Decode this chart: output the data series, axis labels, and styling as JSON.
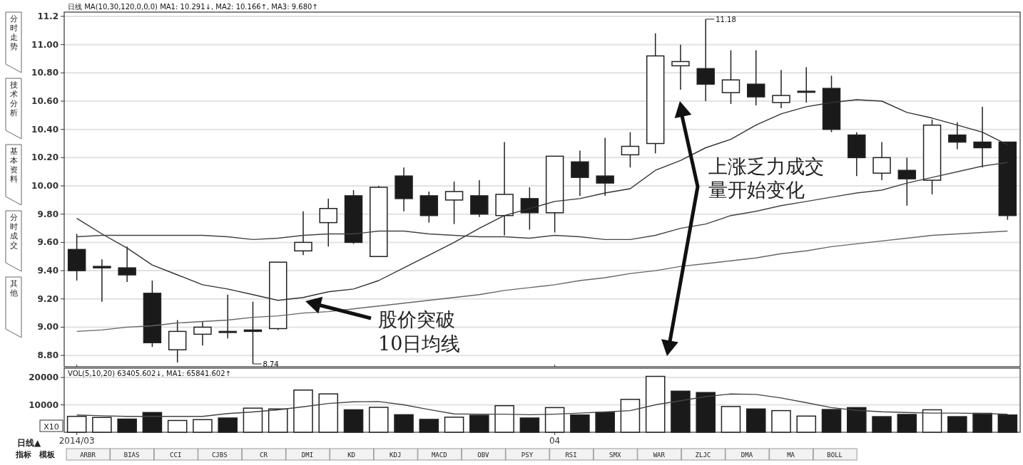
{
  "chart_data": [
    {
      "type": "candlestick",
      "title": "日线 MA(10,30,120,0,0,0) MA1: 10.291↓, MA2: 10.166↑, MA3: 9.680↑",
      "categories": [
        "2014/03",
        null,
        null,
        null,
        null,
        null,
        null,
        null,
        null,
        null,
        null,
        null,
        null,
        null,
        null,
        null,
        null,
        null,
        null,
        "04",
        null,
        null,
        null,
        null,
        null,
        null,
        null,
        null,
        null,
        null,
        null,
        null,
        null,
        null,
        null,
        null,
        null,
        null
      ],
      "tick_labels": "y",
      "grid": "y",
      "ylim": [
        8.72,
        11.23
      ],
      "yticks": [
        {
          "value": 8.8,
          "label": "8.80"
        },
        {
          "value": 9.0,
          "label": "9.00"
        },
        {
          "value": 9.2,
          "label": "9.20"
        },
        {
          "value": 9.4,
          "label": "9.40"
        },
        {
          "value": 9.6,
          "label": "9.60"
        },
        {
          "value": 9.8,
          "label": "9.80"
        },
        {
          "value": 10.0,
          "label": "10.00"
        },
        {
          "value": 10.2,
          "label": "10.20"
        },
        {
          "value": 10.4,
          "label": "10.40"
        },
        {
          "value": 10.6,
          "label": "10.60"
        },
        {
          "value": 10.8,
          "label": "10.80"
        },
        {
          "value": 11.0,
          "label": "11.00"
        },
        11.2
      ],
      "ohlc": [
        [
          9.55,
          9.66,
          9.33,
          9.4
        ],
        [
          9.43,
          9.48,
          9.18,
          9.42
        ],
        [
          9.42,
          9.57,
          9.32,
          9.37
        ],
        [
          9.24,
          9.33,
          8.86,
          8.89
        ],
        [
          8.84,
          9.05,
          8.75,
          8.97
        ],
        [
          8.95,
          9.04,
          8.87,
          9.0
        ],
        [
          8.97,
          9.23,
          8.92,
          8.97
        ],
        [
          8.98,
          9.18,
          8.74,
          8.97
        ],
        [
          8.99,
          9.46,
          8.98,
          9.46
        ],
        [
          9.54,
          9.82,
          9.51,
          9.6
        ],
        [
          9.74,
          9.91,
          9.57,
          9.84
        ],
        [
          9.93,
          9.97,
          9.59,
          9.6
        ],
        [
          9.5,
          10.0,
          9.5,
          9.99
        ],
        [
          10.07,
          10.13,
          9.82,
          9.91
        ],
        [
          9.93,
          9.96,
          9.74,
          9.79
        ],
        [
          9.9,
          10.03,
          9.73,
          9.96
        ],
        [
          9.93,
          10.04,
          9.78,
          9.8
        ],
        [
          9.79,
          10.31,
          9.65,
          9.94
        ],
        [
          9.91,
          9.99,
          9.69,
          9.81
        ],
        [
          9.81,
          10.21,
          9.67,
          10.21
        ],
        [
          10.17,
          10.25,
          9.93,
          10.06
        ],
        [
          10.07,
          10.34,
          9.93,
          10.02
        ],
        [
          10.22,
          10.38,
          10.13,
          10.28
        ],
        [
          10.3,
          11.08,
          10.23,
          10.92
        ],
        [
          10.85,
          11.0,
          10.68,
          10.88
        ],
        [
          10.83,
          11.18,
          10.6,
          10.72
        ],
        [
          10.66,
          10.96,
          10.58,
          10.75
        ],
        [
          10.72,
          10.96,
          10.57,
          10.63
        ],
        [
          10.59,
          10.82,
          10.55,
          10.64
        ],
        [
          10.67,
          10.84,
          10.59,
          10.67
        ],
        [
          10.69,
          10.78,
          10.38,
          10.4
        ],
        [
          10.36,
          10.38,
          10.07,
          10.2
        ],
        [
          10.09,
          10.31,
          10.04,
          10.2
        ],
        [
          10.11,
          10.2,
          9.86,
          10.05
        ],
        [
          10.04,
          10.47,
          9.94,
          10.43
        ],
        [
          10.36,
          10.45,
          10.26,
          10.31
        ],
        [
          10.31,
          10.56,
          10.13,
          10.27
        ],
        [
          10.31,
          10.31,
          9.76,
          9.79
        ]
      ],
      "colors": [
        "#1a1a1a",
        "#1a1a1a",
        "#1a1a1a",
        "#1a1a1a",
        "#ffffff",
        "#ffffff",
        "#ffffff",
        "#1a1a1a",
        "#ffffff",
        "#ffffff",
        "#ffffff",
        "#1a1a1a",
        "#ffffff",
        "#1a1a1a",
        "#1a1a1a",
        "#ffffff",
        "#1a1a1a",
        "#ffffff",
        "#1a1a1a",
        "#ffffff",
        "#1a1a1a",
        "#1a1a1a",
        "#ffffff",
        "#ffffff",
        "#ffffff",
        "#1a1a1a",
        "#ffffff",
        "#1a1a1a",
        "#ffffff",
        "#ffffff",
        "#1a1a1a",
        "#1a1a1a",
        "#ffffff",
        "#1a1a1a",
        "#ffffff",
        "#1a1a1a",
        "#1a1a1a",
        "#1a1a1a"
      ],
      "series": [
        {
          "type": "line",
          "color": "#333333",
          "values": [
            9.77,
            9.66,
            9.56,
            9.44,
            9.37,
            9.3,
            9.27,
            9.23,
            9.19,
            9.21,
            9.25,
            9.27,
            9.33,
            9.42,
            9.51,
            9.6,
            9.7,
            9.79,
            9.84,
            9.89,
            9.91,
            9.95,
            9.98,
            10.11,
            10.18,
            10.27,
            10.33,
            10.43,
            10.51,
            10.56,
            10.59,
            10.61,
            10.6,
            10.52,
            10.48,
            10.43,
            10.38,
            10.291
          ]
        },
        {
          "type": "line",
          "color": "#444444",
          "values": [
            9.64,
            9.65,
            9.65,
            9.65,
            9.65,
            9.65,
            9.64,
            9.62,
            9.63,
            9.65,
            9.66,
            9.66,
            9.68,
            9.68,
            9.66,
            9.65,
            9.64,
            9.64,
            9.63,
            9.65,
            9.64,
            9.62,
            9.62,
            9.65,
            9.7,
            9.73,
            9.79,
            9.82,
            9.86,
            9.89,
            9.92,
            9.95,
            9.97,
            10.02,
            10.06,
            10.1,
            10.14,
            10.166
          ]
        },
        {
          "type": "line",
          "color": "#666666",
          "values": [
            8.97,
            8.98,
            9.0,
            9.01,
            9.03,
            9.04,
            9.05,
            9.07,
            9.08,
            9.1,
            9.11,
            9.13,
            9.15,
            9.17,
            9.19,
            9.21,
            9.23,
            9.26,
            9.28,
            9.3,
            9.33,
            9.35,
            9.38,
            9.4,
            9.43,
            9.45,
            9.47,
            9.49,
            9.52,
            9.54,
            9.57,
            9.59,
            9.61,
            9.63,
            9.65,
            9.66,
            9.67,
            9.68
          ]
        }
      ],
      "annotations": [
        "8.74",
        "11.18",
        "股价突破",
        "10日均线",
        "上涨乏力成交",
        "量开始变化",
        "分时走势",
        "技术分析",
        "基本资料",
        "分时成交",
        "其他"
      ]
    },
    {
      "type": "bar",
      "title": "VOL(5,10,20) 63405.602↓, MA1: 65841.602↑",
      "categories": [
        "2014/03",
        null,
        null,
        null,
        null,
        null,
        null,
        null,
        null,
        null,
        null,
        null,
        null,
        null,
        null,
        null,
        null,
        null,
        null,
        "04",
        null,
        null,
        null,
        null,
        null,
        null,
        null,
        null,
        null,
        null,
        null,
        null,
        null,
        null,
        null,
        null,
        null,
        null
      ],
      "grid": "y",
      "ylim": [
        0,
        23400
      ],
      "yticks": [
        10000,
        20000
      ],
      "series": [
        {
          "type": "bar",
          "values": [
            5800,
            5400,
            4800,
            7200,
            4300,
            4600,
            5200,
            8800,
            8500,
            15400,
            14000,
            8200,
            9100,
            6400,
            4700,
            5500,
            6200,
            9700,
            5200,
            9000,
            6300,
            7300,
            12000,
            20400,
            15000,
            14500,
            9400,
            8500,
            7900,
            5900,
            8300,
            9000,
            5700,
            6500,
            8200,
            5700,
            6900,
            6300
          ],
          "colors": [
            "#ffffff",
            "#ffffff",
            "#1a1a1a",
            "#1a1a1a",
            "#ffffff",
            "#ffffff",
            "#1a1a1a",
            "#ffffff",
            "#ffffff",
            "#ffffff",
            "#ffffff",
            "#1a1a1a",
            "#ffffff",
            "#1a1a1a",
            "#1a1a1a",
            "#ffffff",
            "#1a1a1a",
            "#ffffff",
            "#1a1a1a",
            "#ffffff",
            "#1a1a1a",
            "#1a1a1a",
            "#ffffff",
            "#ffffff",
            "#1a1a1a",
            "#1a1a1a",
            "#ffffff",
            "#1a1a1a",
            "#ffffff",
            "#ffffff",
            "#1a1a1a",
            "#1a1a1a",
            "#1a1a1a",
            "#1a1a1a",
            "#ffffff",
            "#1a1a1a",
            "#1a1a1a",
            "#1a1a1a"
          ]
        },
        {
          "type": "line",
          "color": "#444444",
          "values": [
            6300,
            6000,
            5800,
            5800,
            5800,
            5800,
            6800,
            7400,
            8200,
            9300,
            10500,
            11100,
            11200,
            10000,
            8300,
            6700,
            6600,
            6600,
            6400,
            6600,
            7000,
            7400,
            7900,
            10000,
            11500,
            13000,
            14000,
            13800,
            12500,
            10800,
            9000,
            8000,
            7500,
            7200,
            7000,
            7000,
            6800,
            6600
          ]
        }
      ],
      "annotations": [
        "X10",
        "日线▲",
        "指标",
        "模板",
        "ARBR",
        "BIAS",
        "CCI",
        "CJBS",
        "CR",
        "DMI",
        "KD",
        "KDJ",
        "MACD",
        "OBV",
        "PSY",
        "RSI",
        "SMX",
        "WAR",
        "ZLJC",
        "DMA",
        "MA",
        "BOLL"
      ]
    }
  ]
}
